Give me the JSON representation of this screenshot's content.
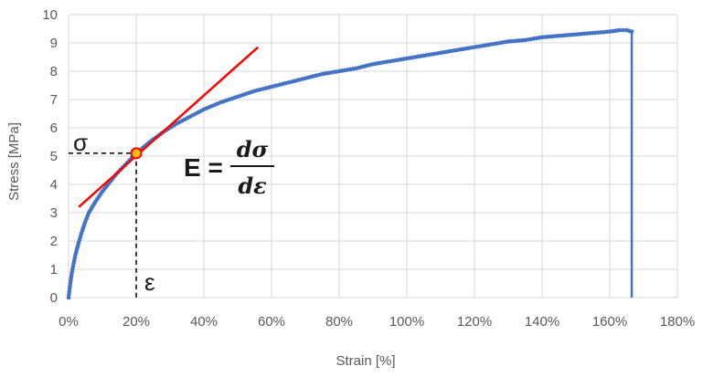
{
  "chart_data": {
    "type": "scatter",
    "title": "",
    "xlabel": "Strain [%]",
    "ylabel": "Stress [MPa]",
    "xlim": [
      0,
      180
    ],
    "ylim": [
      0,
      10
    ],
    "x_ticks": [
      "0%",
      "20%",
      "40%",
      "60%",
      "80%",
      "100%",
      "120%",
      "140%",
      "160%",
      "180%"
    ],
    "y_ticks": [
      "0",
      "1",
      "2",
      "3",
      "4",
      "5",
      "6",
      "7",
      "8",
      "9",
      "10"
    ],
    "grid": true,
    "colors": {
      "series": "#4472c4",
      "tangent": "#ff0000",
      "grid": "#d9d9d9"
    },
    "series": [
      {
        "x": [
          0,
          0.5,
          1,
          1.5,
          2,
          3,
          4,
          5,
          6,
          8,
          10,
          12,
          14,
          16,
          18,
          20,
          24,
          28,
          32,
          36,
          40,
          45,
          50,
          55,
          60,
          65,
          70,
          75,
          80,
          85,
          90,
          95,
          100,
          105,
          110,
          115,
          120,
          125,
          130,
          135,
          140,
          145,
          150,
          155,
          160,
          163,
          165,
          166.5
        ],
        "y": [
          0,
          0.5,
          0.9,
          1.2,
          1.5,
          1.95,
          2.35,
          2.7,
          3.0,
          3.4,
          3.75,
          4.05,
          4.35,
          4.6,
          4.85,
          5.1,
          5.5,
          5.85,
          6.15,
          6.4,
          6.65,
          6.9,
          7.1,
          7.3,
          7.45,
          7.6,
          7.75,
          7.9,
          8.0,
          8.1,
          8.25,
          8.35,
          8.45,
          8.55,
          8.65,
          8.75,
          8.85,
          8.95,
          9.05,
          9.1,
          9.2,
          9.25,
          9.3,
          9.35,
          9.4,
          9.45,
          9.45,
          9.4
        ]
      }
    ],
    "break_x": 166.5,
    "tangent": {
      "x1": 3,
      "y1": 3.2,
      "x2": 56,
      "y2": 8.85
    },
    "marker": {
      "x": 20,
      "y": 5.1
    },
    "annotations": {
      "sigma": "σ",
      "epsilon": "ε",
      "E": "E =",
      "num": "dσ",
      "den": "dε"
    }
  }
}
